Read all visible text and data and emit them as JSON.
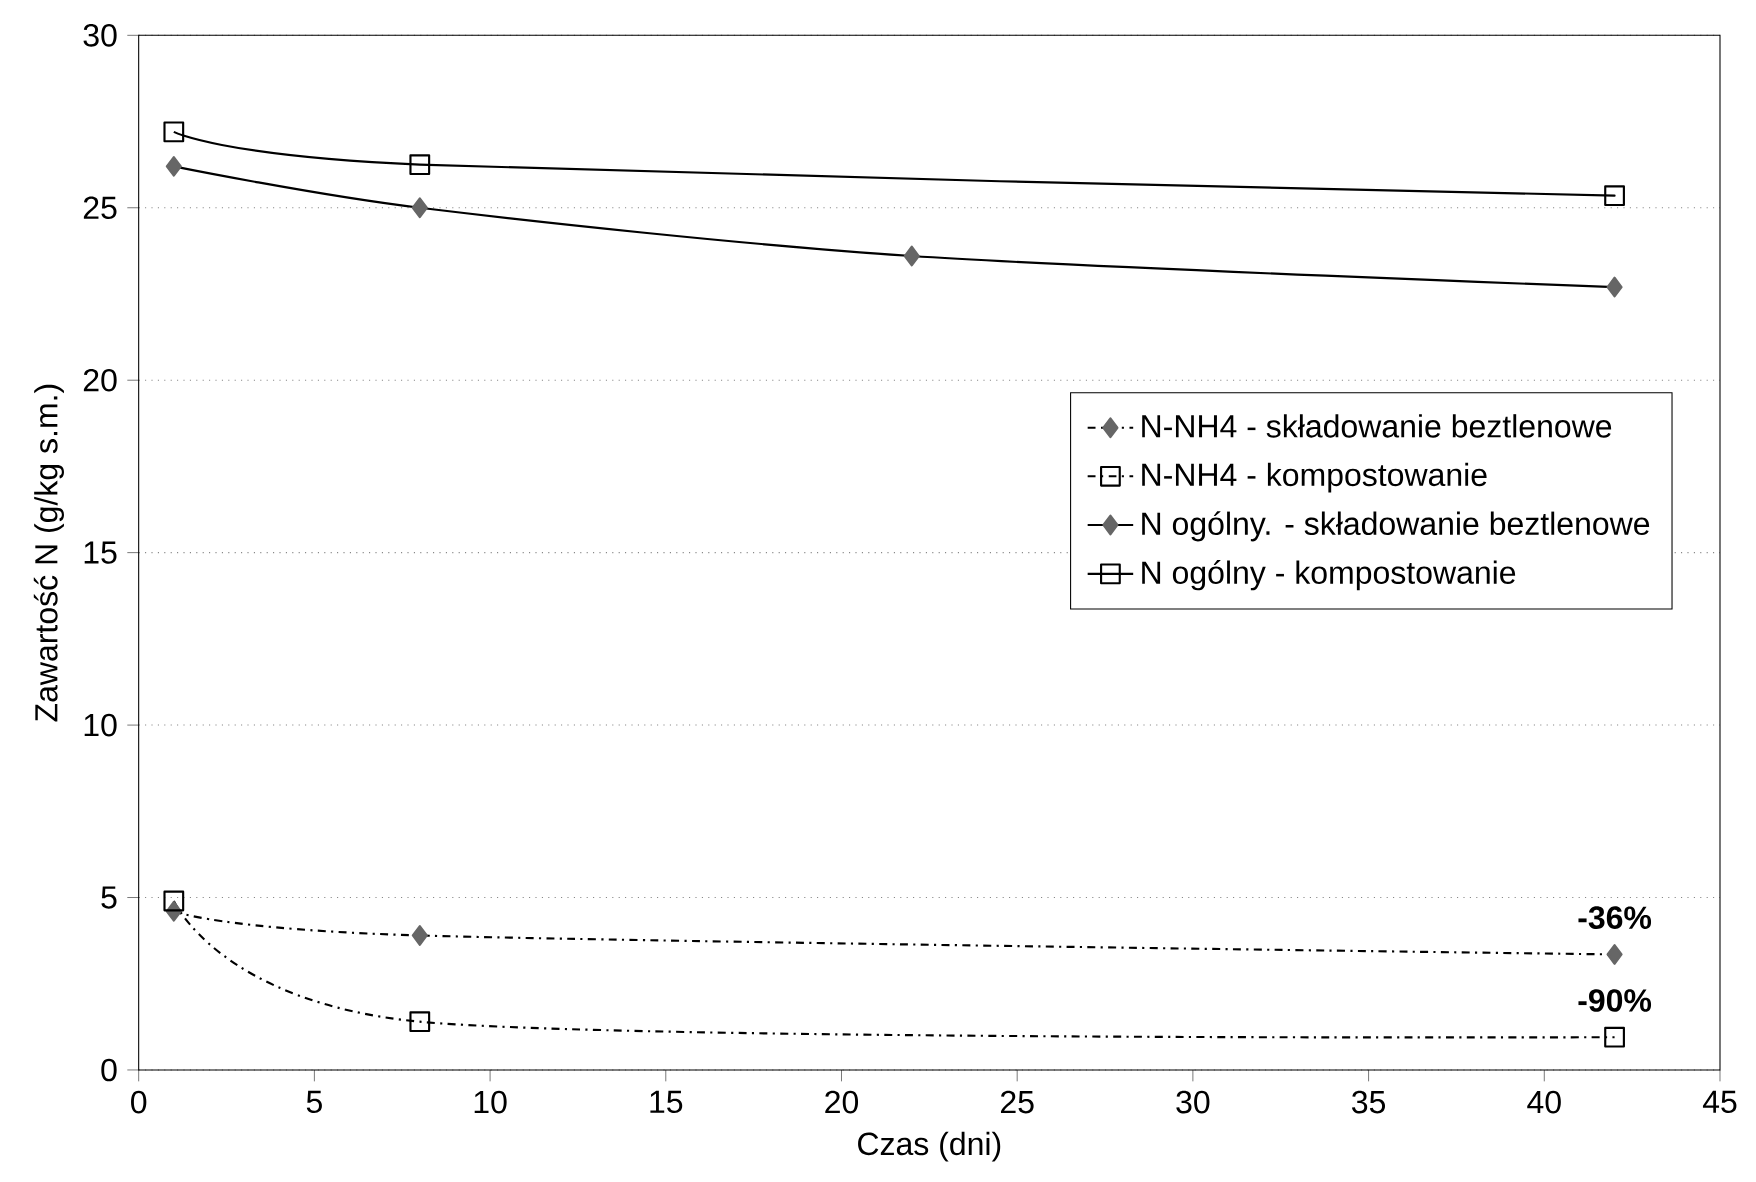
{
  "chart_data": {
    "type": "line",
    "xlabel": "Czas (dni)",
    "ylabel": "Zawartość N (g/kg s.m.)",
    "xlim": [
      0,
      45
    ],
    "xticks": [
      0,
      5,
      10,
      15,
      20,
      25,
      30,
      35,
      40,
      45
    ],
    "ylim": [
      0,
      30
    ],
    "yticks": [
      0,
      5,
      10,
      15,
      20,
      25,
      30
    ],
    "grid": "y",
    "legend": "right",
    "series": [
      {
        "name": "N-NH4 - składowanie beztlenowe",
        "color": "#666666",
        "marker": "diamond",
        "line_style": "dashdot",
        "x": [
          1,
          8,
          42
        ],
        "values": [
          4.6,
          3.9,
          3.35
        ]
      },
      {
        "name": "N-NH4 - kompostowanie",
        "color": "#000000",
        "marker": "square",
        "line_style": "dashdot",
        "x": [
          1,
          8,
          42
        ],
        "values": [
          4.9,
          1.4,
          0.95
        ]
      },
      {
        "name": "N ogólny. - składowanie beztlenowe",
        "color": "#666666",
        "marker": "diamond",
        "line_style": "solid",
        "x": [
          1,
          8,
          22,
          42
        ],
        "values": [
          26.2,
          25.0,
          23.6,
          22.7
        ]
      },
      {
        "name": "N ogólny - kompostowanie",
        "color": "#000000",
        "marker": "square",
        "line_style": "solid",
        "x": [
          1,
          8,
          42
        ],
        "values": [
          27.2,
          26.25,
          25.35
        ]
      }
    ],
    "annotations": [
      {
        "text": "-36%",
        "x": 42,
        "y": 3.35
      },
      {
        "text": "-90%",
        "x": 42,
        "y": 0.95
      }
    ]
  }
}
